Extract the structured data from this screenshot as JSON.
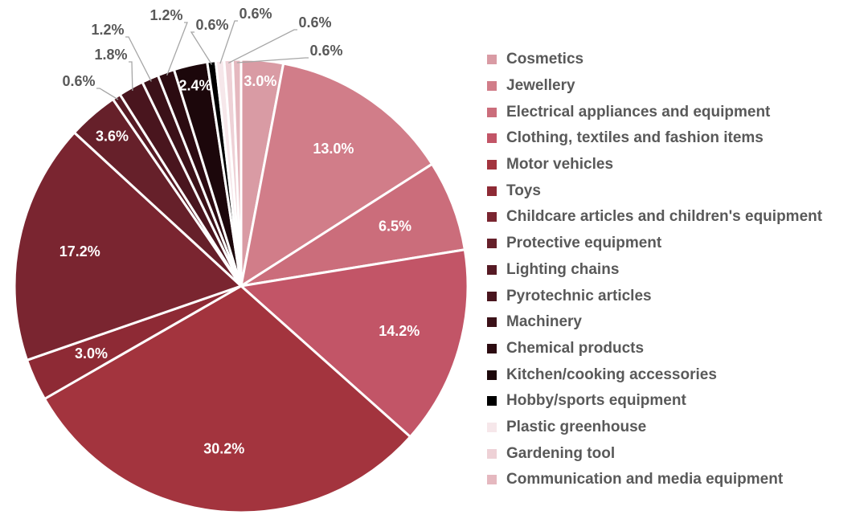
{
  "chart_data": {
    "type": "pie",
    "title": "",
    "start_at": "12 o'clock, clockwise",
    "slices": [
      {
        "name": "Cosmetics",
        "value": 3.0,
        "label": "3.0%",
        "color": "#d99ba4"
      },
      {
        "name": "Jewellery",
        "value": 13.0,
        "label": "13.0%",
        "color": "#d17d89"
      },
      {
        "name": "Electrical appliances and equipment",
        "value": 6.5,
        "label": "6.5%",
        "color": "#cb6d7b"
      },
      {
        "name": "Clothing, textiles and fashion items",
        "value": 14.2,
        "label": "14.2%",
        "color": "#c25567"
      },
      {
        "name": "Motor vehicles",
        "value": 30.2,
        "label": "30.2%",
        "color": "#a3343e"
      },
      {
        "name": "Toys",
        "value": 3.0,
        "label": "3.0%",
        "color": "#8e2a35"
      },
      {
        "name": "Childcare articles and children's equipment",
        "value": 17.2,
        "label": "17.2%",
        "color": "#7a2530"
      },
      {
        "name": "Protective equipment",
        "value": 3.6,
        "label": "3.6%",
        "color": "#66202a"
      },
      {
        "name": "Lighting chains",
        "value": 0.6,
        "label": "0.6%",
        "color": "#561a24"
      },
      {
        "name": "Pyrotechnic articles",
        "value": 1.8,
        "label": "1.8%",
        "color": "#49151e"
      },
      {
        "name": "Machinery",
        "value": 1.2,
        "label": "1.2%",
        "color": "#3b1118"
      },
      {
        "name": "Chemical products",
        "value": 1.2,
        "label": "1.2%",
        "color": "#2c0b11"
      },
      {
        "name": "Kitchen/cooking accessories",
        "value": 2.4,
        "label": "2.4%",
        "color": "#1c070b"
      },
      {
        "name": "Hobby/sports equipment",
        "value": 0.6,
        "label": "0.6%",
        "color": "#000000"
      },
      {
        "name": "Plastic greenhouse",
        "value": 0.6,
        "label": "0.6%",
        "color": "#f6e7ea"
      },
      {
        "name": "Gardening tool",
        "value": 0.6,
        "label": "0.6%",
        "color": "#eed1d6"
      },
      {
        "name": "Communication and media equipment",
        "value": 0.6,
        "label": "0.6%",
        "color": "#e5b8bf"
      }
    ],
    "legend_position": "right"
  }
}
